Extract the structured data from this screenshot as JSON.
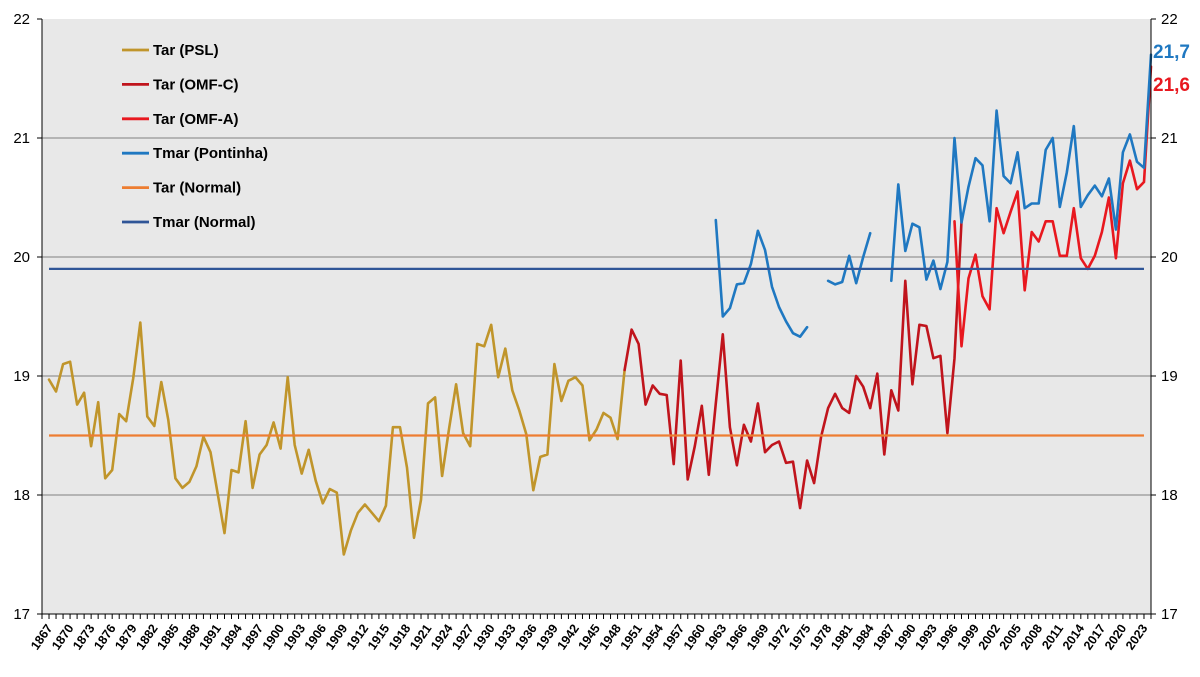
{
  "chart_data": {
    "type": "line",
    "title": "",
    "xlabel": "",
    "ylabel": "",
    "ylim": [
      17,
      22
    ],
    "y_ticks": [
      "17",
      "18",
      "19",
      "20",
      "21",
      "22"
    ],
    "xlim": [
      1866,
      2024
    ],
    "x_tick_labels": [
      "1867",
      "1870",
      "1873",
      "1876",
      "1879",
      "1882",
      "1885",
      "1888",
      "1891",
      "1894",
      "1897",
      "1900",
      "1903",
      "1906",
      "1909",
      "1912",
      "1915",
      "1918",
      "1921",
      "1924",
      "1927",
      "1930",
      "1933",
      "1936",
      "1939",
      "1942",
      "1945",
      "1948",
      "1951",
      "1954",
      "1957",
      "1960",
      "1963",
      "1966",
      "1969",
      "1972",
      "1975",
      "1978",
      "1981",
      "1984",
      "1987",
      "1990",
      "1993",
      "1996",
      "1999",
      "2002",
      "2005",
      "2008",
      "2011",
      "2014",
      "2017",
      "2020",
      "2023"
    ],
    "grid": true,
    "legend_position": "top-left",
    "colors": {
      "background": "#e8e8e8",
      "grid": "#7f7f7f",
      "axis": "#000000"
    },
    "series": [
      {
        "name": "Tar (PSL)",
        "color": "#c0952b",
        "start_year": 1867,
        "values": [
          18.97,
          18.87,
          19.1,
          19.12,
          18.76,
          18.86,
          18.41,
          18.78,
          18.14,
          18.21,
          18.68,
          18.62,
          18.98,
          19.45,
          18.66,
          18.58,
          18.95,
          18.63,
          18.14,
          18.06,
          18.11,
          18.24,
          18.49,
          18.36,
          18.02,
          17.68,
          18.21,
          18.19,
          18.62,
          18.06,
          18.34,
          18.42,
          18.61,
          18.39,
          18.99,
          18.42,
          18.18,
          18.38,
          18.12,
          17.93,
          18.05,
          18.02,
          17.5,
          17.7,
          17.85,
          17.92,
          17.85,
          17.78,
          17.91,
          18.57,
          18.57,
          18.23,
          17.64,
          17.96,
          18.77,
          18.82,
          18.16,
          18.56,
          18.93,
          18.52,
          18.41,
          19.27,
          19.25,
          19.43,
          18.99,
          19.23,
          18.88,
          18.71,
          18.51,
          18.04,
          18.32,
          18.34,
          19.1,
          18.79,
          18.96,
          18.99,
          18.92,
          18.46,
          18.55,
          18.69,
          18.65,
          18.47,
          19.05
        ]
      },
      {
        "name": "Tar (OMF-C)",
        "color": "#c0141c",
        "start_year": 1949,
        "values": [
          19.05,
          19.39,
          19.27,
          18.76,
          18.92,
          18.85,
          18.84,
          18.26,
          19.13,
          18.13,
          18.41,
          18.75,
          18.17,
          18.77,
          19.35,
          18.57,
          18.25,
          18.59,
          18.45,
          18.77,
          18.36,
          18.42,
          18.45,
          18.27,
          18.28,
          17.89,
          18.29,
          18.1,
          18.49,
          18.73,
          18.85,
          18.73,
          18.69,
          19.0,
          18.91,
          18.73,
          19.02,
          18.34,
          18.88,
          18.71,
          19.8,
          18.93,
          19.43,
          19.42,
          19.15,
          19.17,
          18.52,
          19.15,
          20.3
        ]
      },
      {
        "name": "Tar (OMF-A)",
        "color": "#e8181f",
        "start_year": 1996,
        "values": [
          20.3,
          19.25,
          19.82,
          20.02,
          19.67,
          19.56,
          20.41,
          20.2,
          20.38,
          20.55,
          19.72,
          20.21,
          20.13,
          20.3,
          20.3,
          20.01,
          20.01,
          20.41,
          19.99,
          19.9,
          20.01,
          20.21,
          20.5,
          19.99,
          20.62,
          20.81,
          20.57,
          20.63,
          21.6
        ]
      },
      {
        "name": "Tmar (Pontinha)",
        "color": "#1f78c1",
        "start_year": 1962,
        "values": [
          20.31,
          19.5,
          19.57,
          19.77,
          19.78,
          19.94,
          20.22,
          20.06,
          19.75,
          19.58,
          19.46,
          19.36,
          19.33,
          19.41,
          null,
          null,
          19.8,
          19.77,
          19.79,
          20.01,
          19.78,
          20.0,
          20.2,
          null,
          null,
          19.8,
          20.61,
          20.05,
          20.28,
          20.25,
          19.81,
          19.97,
          19.73,
          19.96,
          21.0,
          20.29,
          20.59,
          20.83,
          20.77,
          20.3,
          21.23,
          20.68,
          20.62,
          20.88,
          20.41,
          20.45,
          20.45,
          20.9,
          21.0,
          20.42,
          20.71,
          21.1,
          20.42,
          20.52,
          20.6,
          20.51,
          20.66,
          20.23,
          20.88,
          21.03,
          20.8,
          20.75,
          21.7
        ]
      },
      {
        "name": "Tar (Normal)",
        "color": "#ed7d31",
        "constant": 18.5
      },
      {
        "name": "Tmar (Normal)",
        "color": "#2f5597",
        "constant": 19.9
      }
    ],
    "end_labels": [
      {
        "text": "21,7",
        "color": "#1f78c1"
      },
      {
        "text": "21,6",
        "color": "#e8181f"
      }
    ]
  }
}
